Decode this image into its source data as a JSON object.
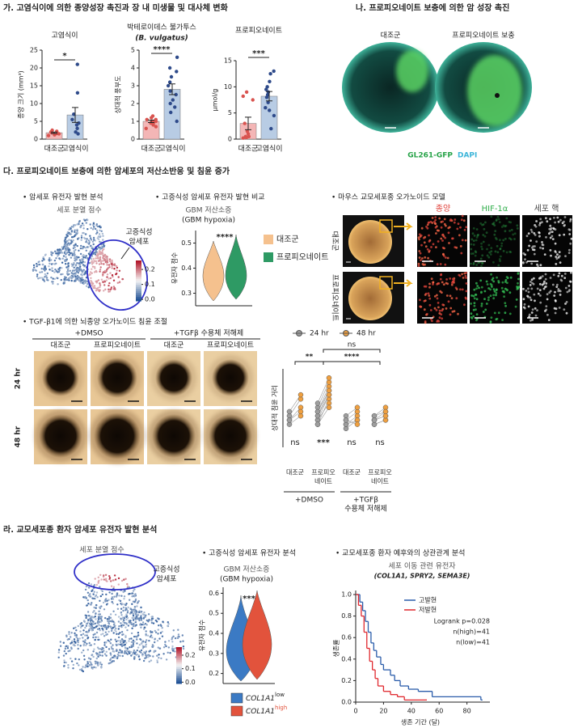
{
  "panel_ga": {
    "title": "가. 고염식이에 의한 종양성장 촉진과 장 내 미생물 및 대사체 변화",
    "charts": [
      {
        "type": "bar",
        "title": "고염식이",
        "ylabel": "종양 크기 (mm³)",
        "categories": [
          "대조군",
          "고염식이"
        ],
        "values": [
          1.8,
          6.8
        ],
        "errors": [
          0.2,
          2.1
        ],
        "points": [
          [
            1.0,
            1.5,
            1.8,
            2.0,
            2.2,
            1.2,
            2.5,
            1.6
          ],
          [
            1.5,
            2,
            3,
            4,
            4.5,
            5.5,
            7,
            13,
            21
          ]
        ],
        "ylim": [
          0,
          25
        ],
        "yticks": [
          0,
          5,
          10,
          15,
          20,
          25
        ],
        "significance": "*",
        "colors": [
          "#f4b6b6",
          "#b8cce4"
        ],
        "point_colors": [
          "#d9534f",
          "#2e4a8a"
        ]
      },
      {
        "type": "bar",
        "title": "박테로이데스 불가투스",
        "subtitle": "(B. vulgatus)",
        "ylabel": "상대적 풍부도",
        "categories": [
          "대조군",
          "고염식이"
        ],
        "values": [
          1.0,
          2.8
        ],
        "errors": [
          0.07,
          0.3
        ],
        "points": [
          [
            0.6,
            0.8,
            0.9,
            1.0,
            1.0,
            1.1,
            1.2,
            0.7,
            0.9,
            1.3,
            1.0,
            1.1
          ],
          [
            1.0,
            1.5,
            2.0,
            2.5,
            2.7,
            3.0,
            3.2,
            3.5,
            4.0,
            4.6,
            2.2,
            1.8,
            3.8
          ]
        ],
        "ylim": [
          0,
          5
        ],
        "yticks": [
          0,
          1,
          2,
          3,
          4,
          5
        ],
        "significance": "****",
        "colors": [
          "#f4b6b6",
          "#b8cce4"
        ],
        "point_colors": [
          "#d9534f",
          "#2e4a8a"
        ]
      },
      {
        "type": "bar",
        "title": "프로피오네이트",
        "ylabel": "μmol/g",
        "categories": [
          "대조군",
          "고염식이"
        ],
        "values": [
          3.0,
          8.2
        ],
        "errors": [
          1.2,
          0.9
        ],
        "points": [
          [
            0.2,
            0.5,
            0.5,
            1,
            1.5,
            3,
            7.5,
            8.2,
            9,
            0.3
          ],
          [
            2,
            4.5,
            5.5,
            6,
            7,
            8,
            8.5,
            9,
            10,
            11,
            12.5,
            9.5,
            13
          ]
        ],
        "ylim": [
          0,
          15
        ],
        "yticks": [
          0,
          5,
          10,
          15
        ],
        "significance": "***",
        "colors": [
          "#f4b6b6",
          "#b8cce4"
        ],
        "point_colors": [
          "#d9534f",
          "#2e4a8a"
        ]
      }
    ]
  },
  "panel_na": {
    "title": "나. 프로피오네이트 보충에 의한 암 성장 촉진",
    "labels": [
      "대조군",
      "프로피오네이트 보충"
    ],
    "stain_gfp": "GL261-GFP",
    "stain_dapi": "DAPI"
  },
  "panel_da": {
    "title": "다. 프로피오네이트 보충에 의한 암세포의 저산소반응 및 침윤 증가",
    "tsne": {
      "heading": "• 암세포 유전자 발현 분석",
      "score": "세포 분열 점수",
      "cluster_label": [
        "고증식성",
        "암세포"
      ],
      "clim": [
        -0.01,
        0.26
      ],
      "colorbar_ticks": [
        0.2,
        0.1,
        {
          "value": 0,
          "label": "0.0"
        }
      ]
    },
    "violin": {
      "heading": "• 고증식성 암세포 유전자 발현 비교",
      "title": "GBM 저산소증",
      "subtitle": "(GBM hypoxia)",
      "ylabel": "유전자 점수",
      "significance": "****",
      "ylim": [
        0.25,
        0.55
      ],
      "yticks": [
        0.3,
        0.4,
        0.5
      ],
      "legend": [
        {
          "name": "대조군",
          "color": "#f5c18e"
        },
        {
          "name": "프로피오네이트",
          "color": "#2e9a64"
        }
      ]
    },
    "organoid": {
      "heading": "• 마우스 교모세포종 오가노이드 모델",
      "channels": [
        {
          "name": "종양",
          "color": "#e0413a"
        },
        {
          "name": "HIF-1α",
          "color": "#2fae4a"
        },
        {
          "name": "세포 핵",
          "color": "#444444"
        }
      ],
      "rows": [
        "대조군",
        "프로피오네이트"
      ]
    },
    "invasion": {
      "heading": "• TGF-β1에 의한 뇌종양 오가노이드 침윤 조절",
      "conditions": [
        "+DMSO",
        "+TGFβ 수용체 저해제"
      ],
      "columns": [
        "대조군",
        "프로피오네이트",
        "대조군",
        "프로피오네이트"
      ],
      "rows": [
        "24 hr",
        "48 hr"
      ]
    },
    "invasion_chart": {
      "type": "paired-dot",
      "ylabel": "상대적 침윤 거리",
      "ylim": [
        1.0,
        2.4
      ],
      "categories": [
        [
          "대조군"
        ],
        [
          "프로피오",
          "네이트"
        ],
        [
          "대조군"
        ],
        [
          "프로피오",
          "네이트"
        ]
      ],
      "groups": [
        [
          "+DMSO"
        ],
        [
          "+TGFβ",
          "수용체 저해제"
        ]
      ],
      "series": [
        {
          "name": "24 hr",
          "color": "#9e9e9e",
          "values": [
            [
              1.2,
              1.3,
              1.4,
              1.5,
              1.3
            ],
            [
              1.2,
              1.3,
              1.4,
              1.5,
              1.6,
              1.3,
              1.4,
              1.5,
              1.7,
              1.2
            ],
            [
              1.1,
              1.2,
              1.3,
              1.2,
              1.4,
              1.3
            ],
            [
              1.2,
              1.3,
              1.3,
              1.4,
              1.2,
              1.4,
              1.3
            ]
          ]
        },
        {
          "name": "48 hr",
          "color": "#f0a040",
          "values": [
            [
              1.4,
              1.6,
              1.8,
              1.9,
              1.5
            ],
            [
              1.8,
              1.9,
              2.0,
              2.1,
              2.2,
              1.7,
              1.9,
              2.0,
              2.3,
              1.6
            ],
            [
              1.3,
              1.4,
              1.5,
              1.3,
              1.6,
              1.2
            ],
            [
              1.3,
              1.4,
              1.5,
              1.6,
              1.3,
              1.5,
              1.4
            ]
          ]
        }
      ],
      "comparisons": [
        "ns",
        "**",
        "****"
      ],
      "group_significance": [
        "ns",
        "***",
        "ns",
        "ns"
      ]
    }
  },
  "panel_ra": {
    "title": "라. 교모세포종 환자 암세포 유전자 발현 분석",
    "tsne": {
      "score": "세포 분열 점수",
      "cluster_label": [
        "고증식성",
        "암세포"
      ],
      "clim": [
        -0.01,
        0.26
      ],
      "colorbar_ticks": [
        0.2,
        0.1,
        {
          "value": 0,
          "label": "0.0"
        }
      ]
    },
    "violin": {
      "heading": "• 고증식성 암세포 유전자 분석",
      "title": "GBM 저산소증",
      "subtitle": "(GBM hypoxia)",
      "ylabel": "유전자 점수",
      "significance": "***",
      "ylim": [
        0.15,
        0.63
      ],
      "yticks": [
        0.2,
        0.3,
        0.4,
        0.5,
        0.6
      ],
      "legend": [
        {
          "gene": "COL1A1",
          "level": "low",
          "color": "#3b7ac4"
        },
        {
          "gene": "COL1A1",
          "level": "high",
          "color": "#e2533c"
        }
      ]
    },
    "survival": {
      "type": "kaplan-meier",
      "heading": "• 교모세포종 환자 예후와의 상관관계 분석",
      "title": "세포 이동 관련 유전자",
      "subtitle": "(COL1A1, SPRY2, SEMA3E)",
      "ylabel": "생존률",
      "xlabel": "생존 기간 (달)",
      "xlim": [
        0,
        93
      ],
      "xticks": [
        0,
        20,
        40,
        60,
        80
      ],
      "ylim": [
        0,
        1
      ],
      "yticks": [
        {
          "value": 0,
          "label": "0.0"
        },
        0.2,
        0.4,
        0.6,
        0.8,
        {
          "value": 1,
          "label": "1.0"
        }
      ],
      "series": [
        {
          "name": "고발현",
          "color": "#2a5caa",
          "x": [
            0,
            3,
            5,
            7,
            9,
            11,
            13,
            15,
            18,
            20,
            25,
            28,
            32,
            38,
            45,
            55,
            90
          ],
          "values": [
            1,
            0.93,
            0.85,
            0.75,
            0.65,
            0.55,
            0.48,
            0.42,
            0.35,
            0.3,
            0.25,
            0.2,
            0.15,
            0.12,
            0.1,
            0.05,
            0.02
          ]
        },
        {
          "name": "저발현",
          "color": "#e0282e",
          "x": [
            0,
            2,
            4,
            6,
            8,
            10,
            12,
            14,
            16,
            20,
            25,
            30,
            35,
            50
          ],
          "values": [
            1,
            0.9,
            0.8,
            0.65,
            0.5,
            0.38,
            0.3,
            0.22,
            0.15,
            0.1,
            0.07,
            0.05,
            0.02,
            0.02
          ]
        }
      ],
      "annotations": [
        "Logrank p=0.028",
        "n(high)=41",
        "n(low)=41"
      ]
    }
  }
}
